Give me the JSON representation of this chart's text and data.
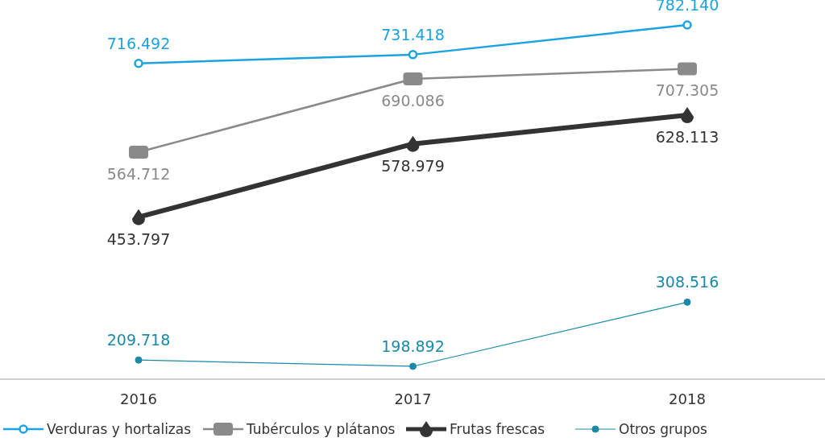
{
  "chart_data": {
    "type": "line",
    "categories": [
      "2016",
      "2017",
      "2018"
    ],
    "legend": "bottom",
    "series": [
      {
        "name": "Verduras y hortalizas",
        "color": "#1aa3e0",
        "marker": "circle",
        "values": [
          716492,
          731418,
          782140
        ],
        "value_labels": [
          "716.492",
          "731.418",
          "782.140"
        ]
      },
      {
        "name": "Tubérculos y plátanos",
        "color": "#8a8a8a",
        "marker": "square",
        "values": [
          564712,
          690086,
          707305
        ],
        "value_labels": [
          "564.712",
          "690.086",
          "707.305"
        ]
      },
      {
        "name": "Frutas frescas",
        "color": "#333333",
        "marker": "diamond",
        "values": [
          453797,
          578979,
          628113
        ],
        "value_labels": [
          "453.797",
          "578.979",
          "628.113"
        ]
      },
      {
        "name": "Otros grupos",
        "color": "#1a8aa8",
        "marker": "circle",
        "values": [
          209718,
          198892,
          308516
        ],
        "value_labels": [
          "209.718",
          "198.892",
          "308.516"
        ]
      }
    ]
  }
}
